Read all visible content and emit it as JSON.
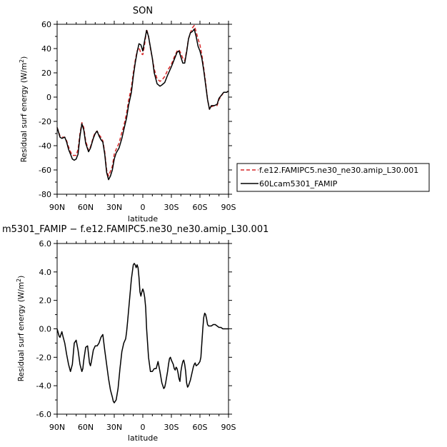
{
  "chart_data": [
    {
      "type": "line",
      "title": "SON",
      "xlabel": "latitude",
      "ylabel": "Residual surf energy (W/m²)",
      "ylabel_main": "Residual surf energy (W/m",
      "ylabel_sup": "2",
      "ylabel_close": ")",
      "xlim": [
        90,
        -90
      ],
      "ylim": [
        -80,
        60
      ],
      "x_ticks": [
        90,
        60,
        30,
        0,
        -30,
        -60,
        -90
      ],
      "x_tick_labels": [
        "90N",
        "60N",
        "30N",
        "0",
        "30S",
        "60S",
        "90S"
      ],
      "y_ticks": [
        -80,
        -60,
        -40,
        -20,
        0,
        20,
        40,
        60
      ],
      "y_tick_labels": [
        "-80",
        "-60",
        "-40",
        "-20",
        "0",
        "20",
        "40",
        "60"
      ],
      "legend": {
        "placement": "right",
        "entries": [
          {
            "label": "f.e12.FAMIPC5.ne30_ne30.amip_L30.001",
            "color": "#d62728",
            "dash": "dashed"
          },
          {
            "label": "60Lcam5301_FAMIP",
            "color": "#000000",
            "dash": "solid"
          }
        ]
      },
      "series": [
        {
          "name": "f.e12.FAMIPC5.ne30_ne30.amip_L30.001",
          "color": "#d62728",
          "dash": "dashed",
          "x": [
            90,
            87,
            85,
            82,
            80,
            78,
            76,
            74,
            72,
            70,
            68,
            66,
            64,
            62,
            60,
            57,
            55,
            52,
            50,
            48,
            46,
            44,
            42,
            40,
            38,
            36,
            34,
            32,
            30,
            28,
            25,
            22,
            20,
            17,
            15,
            12,
            10,
            8,
            6,
            4,
            2,
            0,
            -2,
            -4,
            -6,
            -8,
            -10,
            -12,
            -15,
            -18,
            -20,
            -23,
            -26,
            -30,
            -33,
            -36,
            -38,
            -40,
            -42,
            -44,
            -46,
            -48,
            -50,
            -52,
            -54,
            -56,
            -58,
            -60,
            -62,
            -64,
            -66,
            -68,
            -70,
            -72,
            -75,
            -78,
            -80,
            -85,
            -88,
            -90
          ],
          "y": [
            -25,
            -32,
            -33,
            -33,
            -36,
            -41,
            -45,
            -48,
            -48,
            -48,
            -43,
            -30,
            -21,
            -25,
            -36,
            -44,
            -41,
            -33,
            -29,
            -28,
            -31,
            -33,
            -36,
            -45,
            -60,
            -65,
            -61,
            -57,
            -47,
            -43,
            -38,
            -29,
            -24,
            -13,
            -3,
            8,
            20,
            30,
            38,
            41,
            36,
            35,
            44,
            56,
            50,
            40,
            32,
            23,
            15,
            13,
            14,
            17,
            22,
            27,
            33,
            38,
            39,
            36,
            32,
            30,
            38,
            48,
            53,
            57,
            59,
            54,
            48,
            43,
            35,
            24,
            12,
            -2,
            -10,
            -8,
            -7,
            -7,
            -2,
            4,
            4,
            5
          ]
        },
        {
          "name": "60Lcam5301_FAMIP",
          "color": "#000000",
          "dash": "solid",
          "x": [
            90,
            87,
            85,
            82,
            80,
            78,
            76,
            74,
            72,
            70,
            68,
            66,
            64,
            62,
            60,
            57,
            55,
            52,
            50,
            48,
            46,
            44,
            42,
            40,
            38,
            36,
            34,
            32,
            30,
            28,
            25,
            22,
            20,
            17,
            15,
            12,
            10,
            8,
            6,
            4,
            2,
            0,
            -2,
            -4,
            -6,
            -8,
            -10,
            -12,
            -15,
            -18,
            -20,
            -23,
            -26,
            -30,
            -33,
            -36,
            -38,
            -40,
            -42,
            -44,
            -46,
            -48,
            -50,
            -52,
            -54,
            -56,
            -58,
            -60,
            -62,
            -64,
            -66,
            -68,
            -70,
            -72,
            -75,
            -78,
            -80,
            -85,
            -88,
            -90
          ],
          "y": [
            -25,
            -33,
            -34,
            -33,
            -37,
            -43,
            -47,
            -51,
            -52,
            -51,
            -47,
            -32,
            -22,
            -27,
            -38,
            -45,
            -42,
            -34,
            -30,
            -28,
            -32,
            -35,
            -37,
            -47,
            -62,
            -68,
            -65,
            -60,
            -51,
            -46,
            -42,
            -34,
            -27,
            -17,
            -7,
            4,
            17,
            28,
            37,
            44,
            43,
            38,
            47,
            55,
            50,
            41,
            32,
            20,
            11,
            9,
            10,
            12,
            18,
            25,
            31,
            37,
            38,
            33,
            28,
            28,
            37,
            48,
            53,
            54,
            56,
            50,
            42,
            38,
            32,
            22,
            10,
            -2,
            -10,
            -7,
            -7,
            -6,
            -1,
            4,
            4,
            5
          ]
        }
      ]
    },
    {
      "type": "line",
      "title": "m5301_FAMIP − f.e12.FAMIPC5.ne30_ne30.amip_L30.001",
      "xlabel": "latitude",
      "ylabel": "Residual surf energy (W/m²)",
      "ylabel_main": "Residual surf energy (W/m",
      "ylabel_sup": "2",
      "ylabel_close": ")",
      "xlim": [
        90,
        -90
      ],
      "ylim": [
        -6,
        6
      ],
      "x_ticks": [
        90,
        60,
        30,
        0,
        -30,
        -60,
        -90
      ],
      "x_tick_labels": [
        "90N",
        "60N",
        "30N",
        "0",
        "30S",
        "60S",
        "90S"
      ],
      "y_ticks": [
        -6,
        -4,
        -2,
        0,
        2,
        4,
        6
      ],
      "y_tick_labels": [
        "-6.0",
        "-4.0",
        "-2.0",
        "0.0",
        "2.0",
        "4.0",
        "6.0"
      ],
      "series": [
        {
          "color": "#000000",
          "dash": "solid",
          "x": [
            90,
            88,
            87,
            86,
            85,
            84,
            82,
            80,
            78,
            76,
            74,
            72,
            70,
            68,
            67,
            66,
            64,
            63,
            62,
            60,
            58,
            57,
            56,
            55,
            54,
            52,
            50,
            48,
            46,
            44,
            42,
            40,
            38,
            36,
            34,
            32,
            31,
            30,
            28,
            26,
            24,
            22,
            20,
            18,
            17,
            16,
            14,
            12,
            10,
            9,
            8,
            7,
            6,
            5,
            4,
            3,
            2,
            1,
            0,
            -1,
            -2,
            -3,
            -4,
            -5,
            -6,
            -8,
            -10,
            -12,
            -14,
            -16,
            -18,
            -20,
            -22,
            -23,
            -24,
            -26,
            -27,
            -28,
            -29,
            -30,
            -32,
            -33,
            -34,
            -35,
            -36,
            -37,
            -38,
            -39,
            -40,
            -41,
            -42,
            -43,
            -44,
            -45,
            -46,
            -47,
            -48,
            -50,
            -52,
            -53,
            -54,
            -55,
            -56,
            -58,
            -60,
            -61,
            -62,
            -63,
            -64,
            -65,
            -66,
            -67,
            -68,
            -69,
            -70,
            -72,
            -74,
            -76,
            -78,
            -80,
            -82,
            -84,
            -86,
            -88,
            -90
          ],
          "y": [
            0,
            -0.5,
            -0.6,
            -0.4,
            -0.2,
            -0.5,
            -1.0,
            -1.8,
            -2.5,
            -3.0,
            -2.5,
            -1.0,
            -0.8,
            -1.5,
            -2.0,
            -2.5,
            -3.0,
            -2.8,
            -2.2,
            -1.3,
            -1.2,
            -1.8,
            -2.4,
            -2.6,
            -2.3,
            -1.5,
            -1.2,
            -1.2,
            -1.0,
            -0.6,
            -0.4,
            -1.5,
            -2.5,
            -3.5,
            -4.3,
            -4.8,
            -5.1,
            -5.2,
            -5.0,
            -4.2,
            -2.8,
            -1.6,
            -1.0,
            -0.7,
            -0.2,
            0.5,
            2.0,
            3.5,
            4.5,
            4.6,
            4.5,
            4.3,
            4.5,
            4.3,
            3.6,
            2.6,
            2.3,
            2.6,
            2.8,
            2.6,
            2.2,
            1.5,
            0.0,
            -1.0,
            -2.0,
            -3.0,
            -3.0,
            -2.8,
            -2.8,
            -2.3,
            -3.0,
            -3.8,
            -4.2,
            -4.1,
            -3.8,
            -3.0,
            -2.5,
            -2.1,
            -2.0,
            -2.2,
            -2.5,
            -2.8,
            -2.9,
            -2.7,
            -2.8,
            -3.1,
            -3.5,
            -3.7,
            -3.0,
            -2.6,
            -2.3,
            -2.2,
            -2.5,
            -3.0,
            -3.8,
            -4.1,
            -4.0,
            -3.6,
            -3.0,
            -2.7,
            -2.5,
            -2.4,
            -2.6,
            -2.5,
            -2.3,
            -2.0,
            -1.0,
            0.0,
            0.8,
            1.1,
            1.0,
            0.7,
            0.3,
            0.2,
            0.2,
            0.2,
            0.3,
            0.3,
            0.2,
            0.1,
            0.1,
            0.0,
            0.0,
            0.0,
            0.0
          ]
        }
      ]
    }
  ]
}
